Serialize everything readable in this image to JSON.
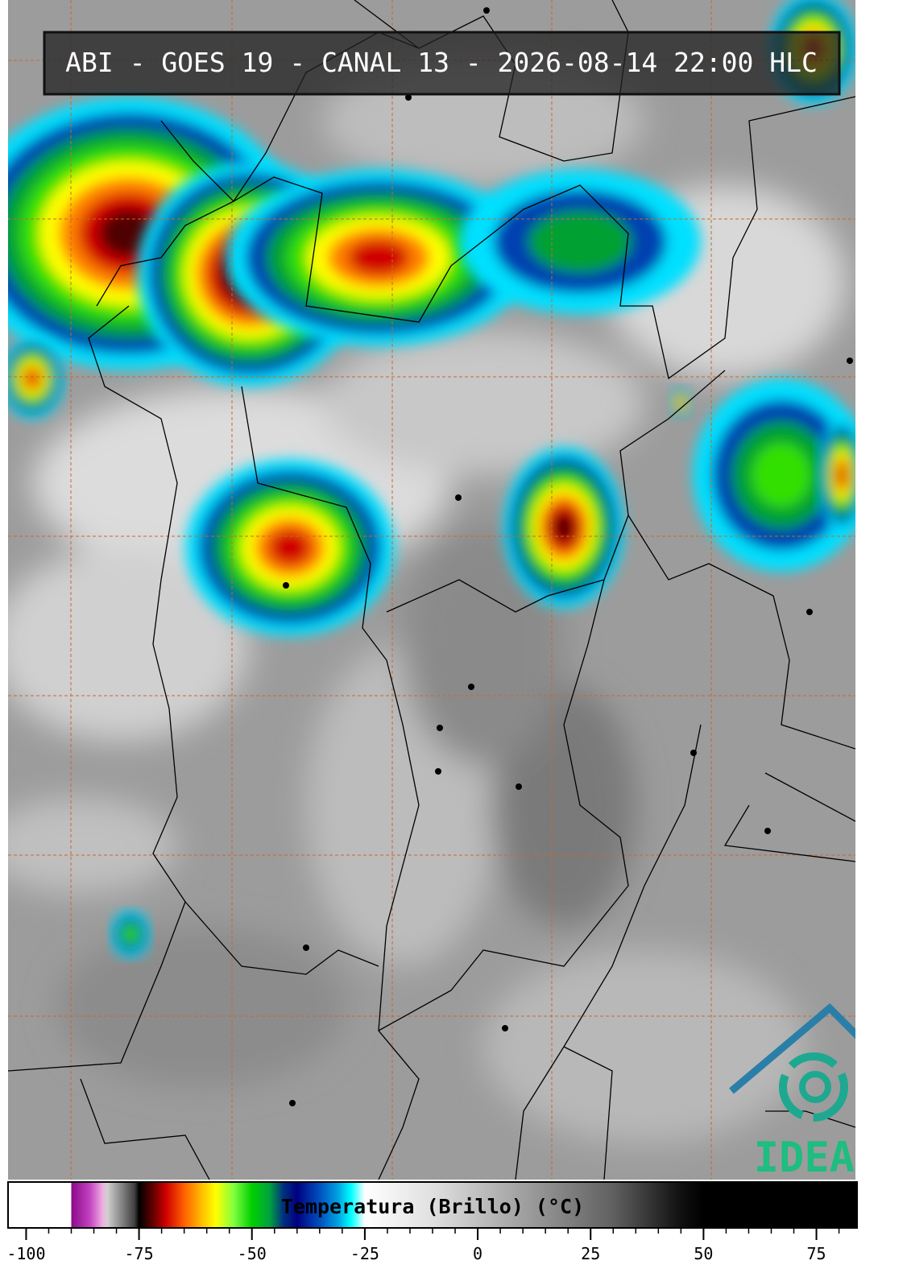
{
  "header": {
    "title": "ABI - GOES 19 - CANAL 13 - 2026-08-14 22:00 HLC"
  },
  "colorbar": {
    "label": "Temperatura (Brillo) (°C)",
    "lim": [
      -104,
      84
    ],
    "ticks": [
      -100,
      -75,
      -50,
      -25,
      0,
      25,
      50,
      75
    ],
    "minor_step": 5,
    "colormap": [
      [
        -104,
        "#ffffff"
      ],
      [
        -90,
        "#ffffff"
      ],
      [
        -90,
        "#8a0a8a"
      ],
      [
        -86,
        "#c040c0"
      ],
      [
        -83,
        "#f0b0e0"
      ],
      [
        -82,
        "#d0d0d0"
      ],
      [
        -76,
        "#404040"
      ],
      [
        -75,
        "#000000"
      ],
      [
        -72,
        "#600000"
      ],
      [
        -69,
        "#d00000"
      ],
      [
        -65,
        "#ff6000"
      ],
      [
        -61,
        "#ffc000"
      ],
      [
        -58,
        "#ffff00"
      ],
      [
        -54,
        "#80ff40"
      ],
      [
        -50,
        "#00d000"
      ],
      [
        -46,
        "#00a040"
      ],
      [
        -43,
        "#003080"
      ],
      [
        -40,
        "#000080"
      ],
      [
        -35,
        "#0050c0"
      ],
      [
        -31,
        "#00a0e0"
      ],
      [
        -28,
        "#00ffff"
      ],
      [
        -25,
        "#ffffff"
      ],
      [
        -10,
        "#e0e0e0"
      ],
      [
        10,
        "#a0a0a0"
      ],
      [
        30,
        "#606060"
      ],
      [
        45,
        "#101010"
      ],
      [
        50,
        "#000000"
      ],
      [
        84,
        "#000000"
      ]
    ]
  },
  "logo": {
    "text": "IDEAM"
  }
}
